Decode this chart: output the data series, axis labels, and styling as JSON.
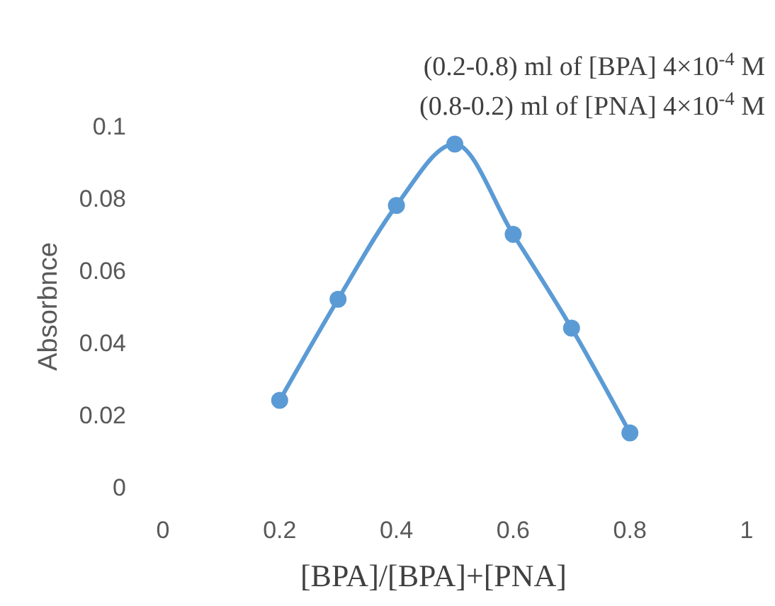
{
  "chart_data": {
    "type": "line",
    "xlabel": "[BPA]/[BPA]+[PNA]",
    "ylabel": "Absorbnce",
    "annotations": [
      "(0.2-0.8) ml of [BPA] 4×10$^{-4}$ M",
      "(0.8-0.2) ml of [PNA] 4×10$^{-4}$ M"
    ],
    "x": [
      0.2,
      0.3,
      0.4,
      0.5,
      0.6,
      0.7,
      0.8
    ],
    "series": [
      {
        "color": "#5b9bd5",
        "values": [
          0.024,
          0.052,
          0.078,
          0.095,
          0.07,
          0.044,
          0.015
        ]
      }
    ],
    "xlim": [
      0,
      1
    ],
    "xticks": [
      0,
      0.2,
      0.4,
      0.6,
      0.8,
      1
    ],
    "ylim": [
      0,
      0.1
    ],
    "yticks": [
      0,
      0.02,
      0.04,
      0.06,
      0.08,
      0.1
    ],
    "grid": false,
    "marker": "circle",
    "line_style": "solid"
  }
}
